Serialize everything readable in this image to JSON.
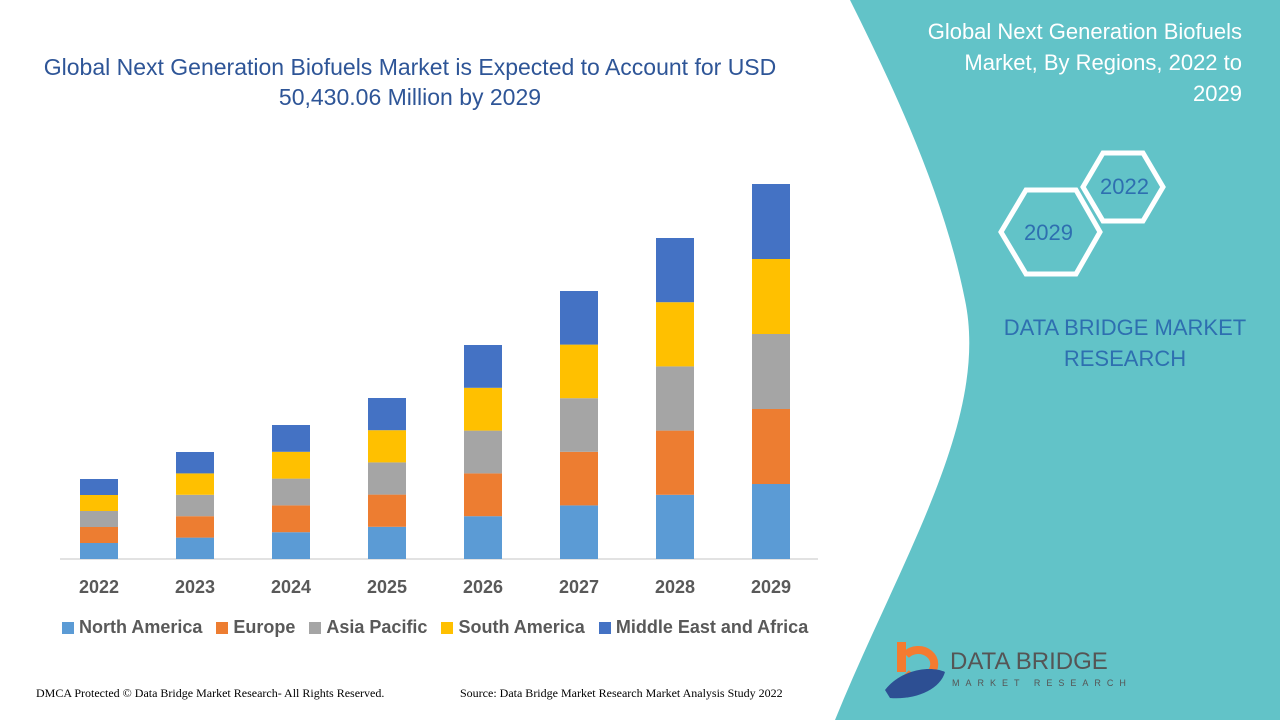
{
  "title": "Global Next Generation Biofuels Market is Expected to Account for USD 50,430.06 Million by 2029",
  "side_title": "Global Next Generation Biofuels Market, By Regions, 2022 to 2029",
  "hex_labels": [
    "2022",
    "2029"
  ],
  "brand": "DATA BRIDGE MARKET RESEARCH",
  "logo": {
    "name": "DATA BRIDGE",
    "sub": "MARKET RESEARCH"
  },
  "footer": {
    "left": "DMCA Protected © Data Bridge Market Research- All Rights Reserved.",
    "right": "Source: Data Bridge Market Research Market Analysis Study 2022"
  },
  "colors": {
    "panel": "#62c3c8",
    "title": "#2e5597"
  },
  "chart_data": {
    "type": "bar",
    "stacked": true,
    "grid": false,
    "legend_position": "bottom",
    "categories": [
      "2022",
      "2023",
      "2024",
      "2025",
      "2026",
      "2027",
      "2028",
      "2029"
    ],
    "series": [
      {
        "name": "North America",
        "color": "#5b9bd5",
        "values": [
          3.2,
          4.28,
          5.36,
          6.44,
          8.56,
          10.72,
          12.84,
          15.0
        ]
      },
      {
        "name": "Europe",
        "color": "#ed7d31",
        "values": [
          3.2,
          4.28,
          5.36,
          6.44,
          8.56,
          10.72,
          12.84,
          15.0
        ]
      },
      {
        "name": "Asia Pacific",
        "color": "#a5a5a5",
        "values": [
          3.2,
          4.28,
          5.36,
          6.44,
          8.56,
          10.72,
          12.84,
          15.0
        ]
      },
      {
        "name": "South America",
        "color": "#ffc000",
        "values": [
          3.2,
          4.28,
          5.36,
          6.44,
          8.56,
          10.72,
          12.84,
          15.0
        ]
      },
      {
        "name": "Middle East and Africa",
        "color": "#4472c4",
        "values": [
          3.2,
          4.28,
          5.36,
          6.44,
          8.56,
          10.72,
          12.84,
          15.0
        ]
      }
    ]
  }
}
